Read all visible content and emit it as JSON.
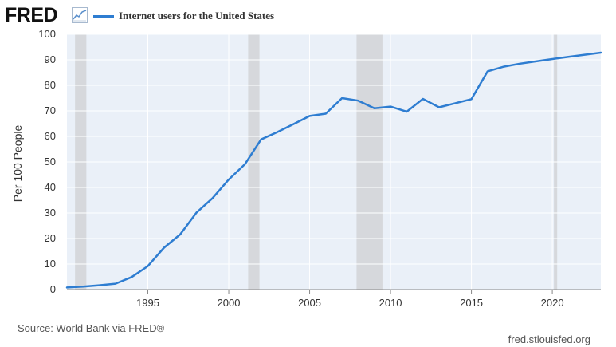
{
  "header": {
    "logo_text": "FRED",
    "logo_icon": "line-chart-icon"
  },
  "footer": {
    "source": "Source: World Bank via FRED®",
    "credit": "fred.stlouisfed.org"
  },
  "colors": {
    "series": "#2e7dd1",
    "plot_bg": "#eaf0f8",
    "recession": "#d6d8dc",
    "grid": "#ffffff"
  },
  "chart_data": {
    "type": "line",
    "title": "",
    "xlabel": "",
    "ylabel": "Per 100 People",
    "xlim": [
      1990,
      2023
    ],
    "ylim": [
      0,
      100
    ],
    "grid": true,
    "legend_position": "top-left",
    "x_ticks": [
      "1995",
      "2000",
      "2005",
      "2010",
      "2015",
      "2020"
    ],
    "y_ticks": [
      "0",
      "10",
      "20",
      "30",
      "40",
      "50",
      "60",
      "70",
      "80",
      "90",
      "100"
    ],
    "recessions": [
      [
        1990.5,
        1991.2
      ],
      [
        2001.2,
        2001.9
      ],
      [
        2007.9,
        2009.5
      ],
      [
        2020.1,
        2020.3
      ]
    ],
    "series": [
      {
        "name": "Internet users for the United States",
        "color": "#2e7dd1",
        "x": [
          1990,
          1991,
          1992,
          1993,
          1994,
          1995,
          1996,
          1997,
          1998,
          1999,
          2000,
          2001,
          2002,
          2003,
          2004,
          2005,
          2006,
          2007,
          2008,
          2009,
          2010,
          2011,
          2012,
          2013,
          2014,
          2015,
          2016,
          2017,
          2018,
          2019,
          2020,
          2021,
          2022,
          2023
        ],
        "y": [
          0.8,
          1.2,
          1.7,
          2.3,
          4.9,
          9.2,
          16.4,
          21.6,
          30.1,
          35.8,
          43.1,
          49.1,
          58.8,
          61.7,
          64.8,
          68.0,
          68.9,
          75.0,
          74.0,
          71.0,
          71.7,
          69.7,
          74.7,
          71.4,
          73.0,
          74.6,
          85.5,
          87.3,
          88.5,
          89.4,
          90.3,
          91.2,
          92.0,
          92.8
        ]
      }
    ]
  }
}
